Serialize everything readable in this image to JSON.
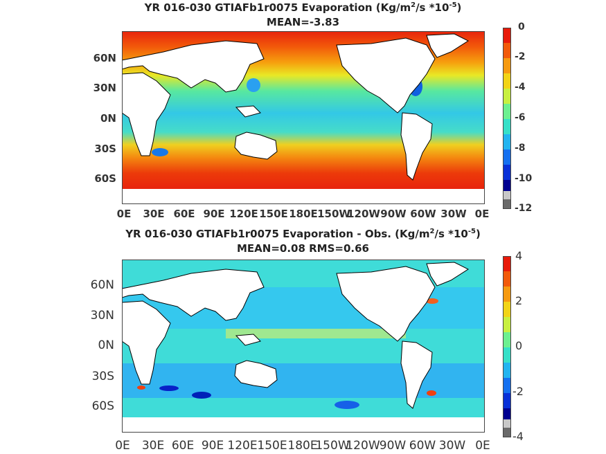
{
  "chart_data": [
    {
      "type": "heatmap",
      "title_prefix": "YR 016-030 GTIAFb1r0075  Evaporation (Kg/m",
      "title_sup1": "2",
      "title_mid": "/s *10",
      "title_sup2": "-5",
      "title_suffix": ")",
      "subtitle": "MEAN=-3.83",
      "ytick_labels": [
        "60N",
        "30N",
        "0N",
        "30S",
        "60S"
      ],
      "xtick_labels": [
        "0E",
        "30E",
        "60E",
        "90E",
        "120E",
        "150E",
        "180E",
        "150W",
        "120W",
        "90W",
        "60W",
        "30W",
        "0E"
      ],
      "colorbar": {
        "min": -12,
        "max": 0,
        "tick_labels": [
          "0",
          "-2",
          "-4",
          "-6",
          "-8",
          "-10",
          "-12"
        ]
      }
    },
    {
      "type": "heatmap",
      "title_prefix": "YR 016-030 GTIAFb1r0075 Evaporation - Obs. (Kg/m",
      "title_sup1": "2",
      "title_mid": "/s *10",
      "title_sup2": "-5",
      "title_suffix": ")",
      "subtitle": "MEAN=0.08   RMS=0.66",
      "ytick_labels": [
        "60N",
        "30N",
        "0N",
        "30S",
        "60S"
      ],
      "xtick_labels": [
        "0E",
        "30E",
        "60E",
        "90E",
        "120E",
        "150E",
        "180E",
        "150W",
        "120W",
        "90W",
        "60W",
        "30W",
        "0E"
      ],
      "colorbar": {
        "min": -4,
        "max": 4,
        "tick_labels": [
          "4",
          "2",
          "0",
          "-2",
          "-4"
        ]
      }
    }
  ]
}
